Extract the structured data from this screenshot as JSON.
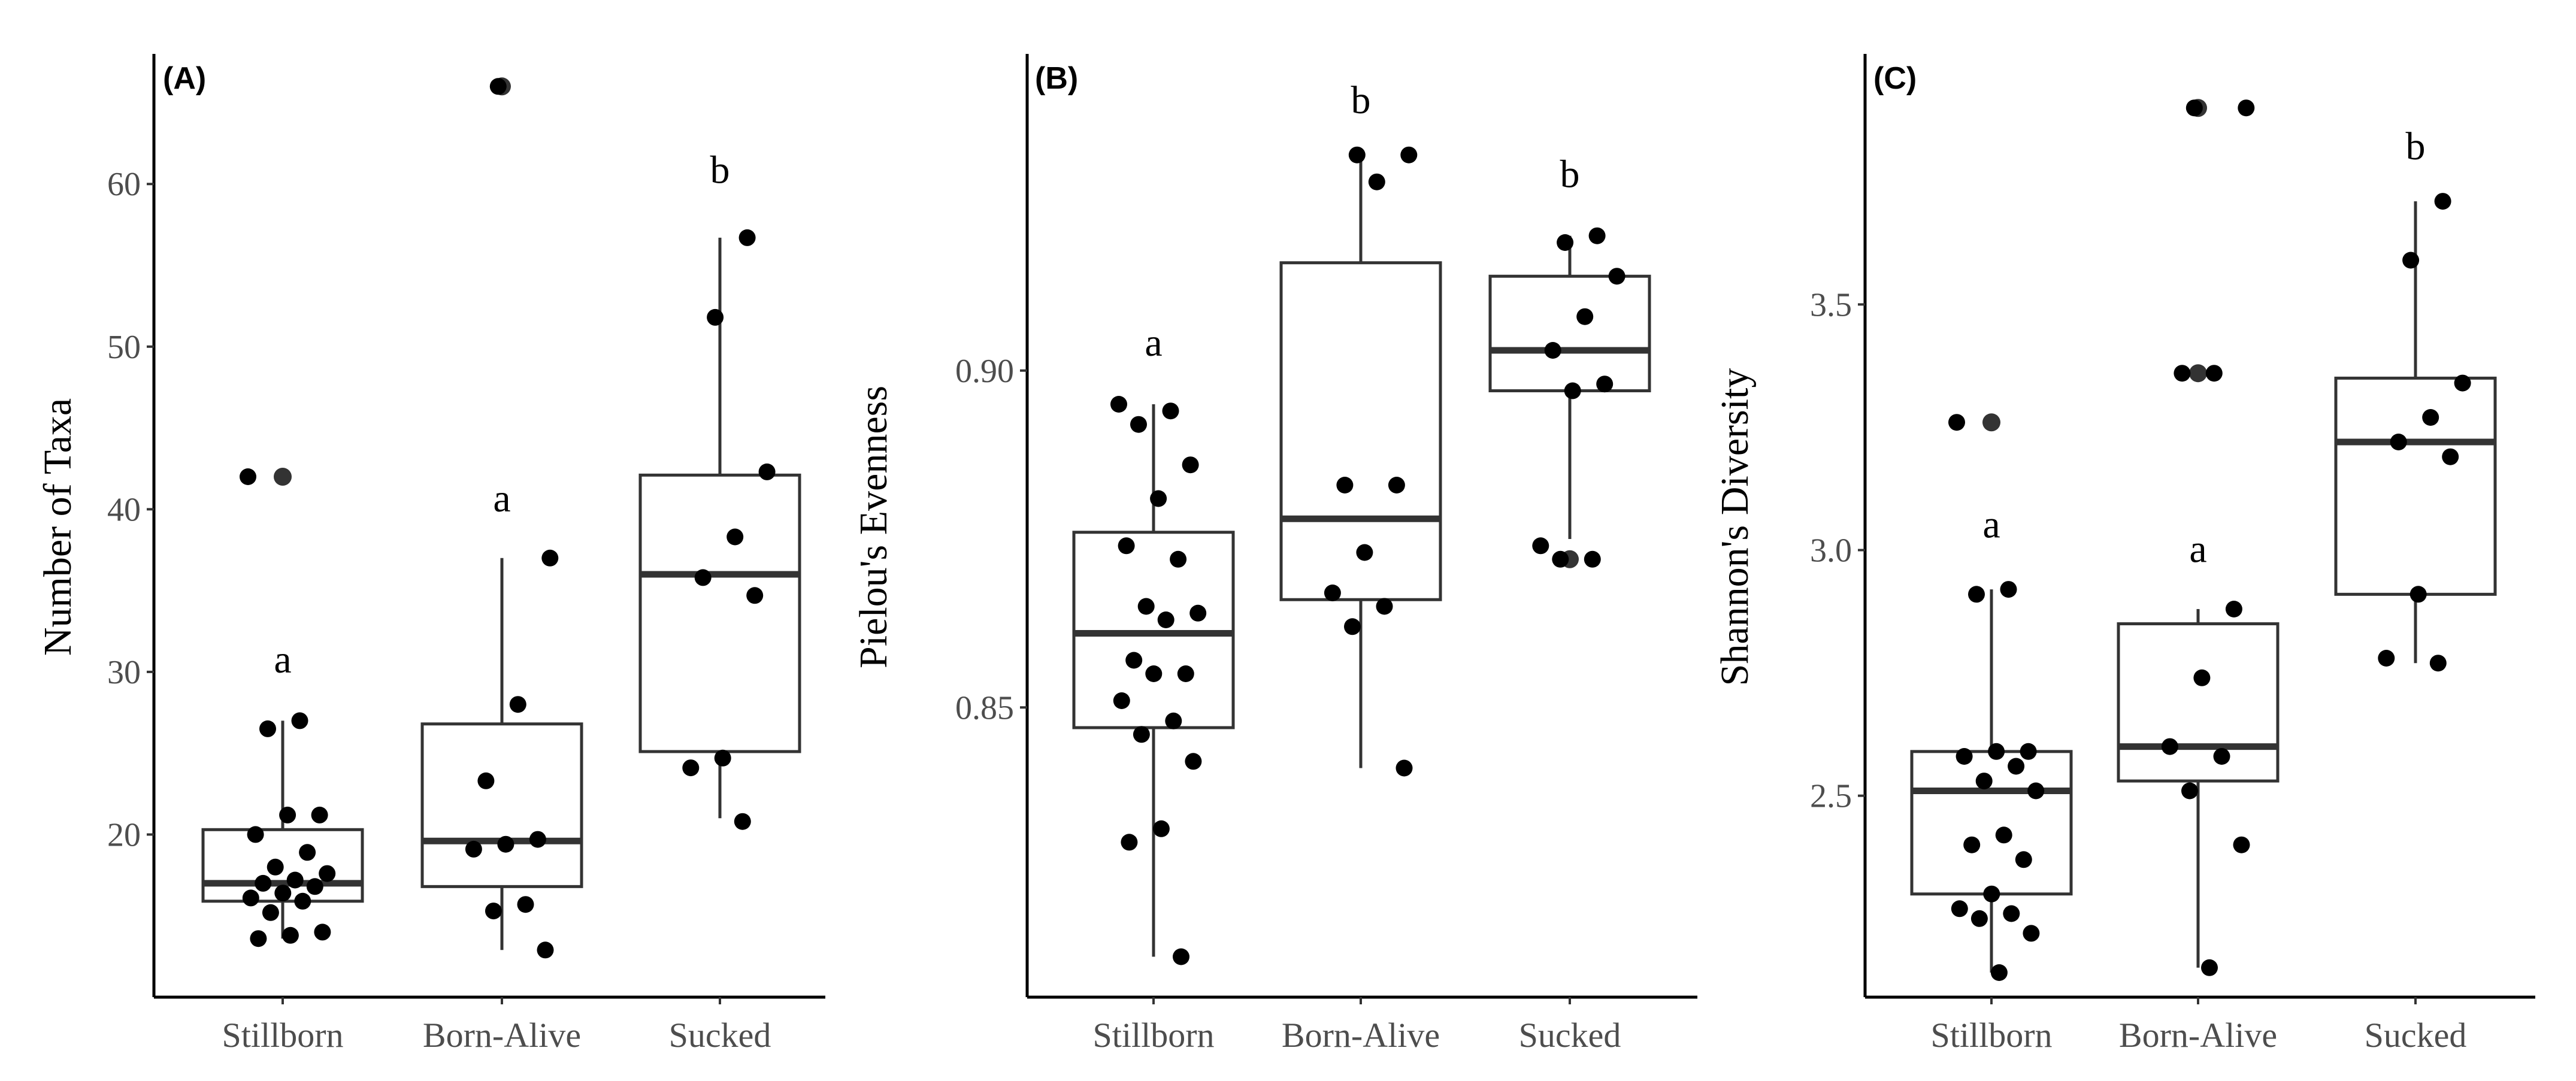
{
  "chart_data": [
    {
      "type": "box",
      "panel_label": "(A)",
      "ylabel": "Number of Taxa",
      "categories": [
        "Stillborn",
        "Born-Alive",
        "Sucked"
      ],
      "ylim": [
        10,
        68
      ],
      "yticks": [
        20,
        30,
        40,
        50,
        60
      ],
      "grid": false,
      "boxes": [
        {
          "category": "Stillborn",
          "q1": 15.9,
          "median": 17.0,
          "q3": 20.3,
          "whisker_low": 13.6,
          "whisker_high": 27.0,
          "outliers": [
            42
          ]
        },
        {
          "category": "Born-Alive",
          "q1": 16.8,
          "median": 19.6,
          "q3": 26.8,
          "whisker_low": 12.9,
          "whisker_high": 37.0,
          "outliers": [
            66
          ]
        },
        {
          "category": "Sucked",
          "q1": 25.1,
          "median": 36.0,
          "q3": 42.1,
          "whisker_low": 21.0,
          "whisker_high": 56.7,
          "outliers": []
        }
      ],
      "points": [
        {
          "category": "Stillborn",
          "values": [
            42,
            27.0,
            26.5,
            21.2,
            21.2,
            20.0,
            18.9,
            18.0,
            17.6,
            17.2,
            17.0,
            16.8,
            16.4,
            16.1,
            15.9,
            15.2,
            14.0,
            13.8,
            13.6
          ]
        },
        {
          "category": "Born-Alive",
          "values": [
            66,
            37.0,
            28.0,
            23.3,
            19.7,
            19.4,
            19.1,
            15.7,
            15.3,
            12.9
          ]
        },
        {
          "category": "Sucked",
          "values": [
            56.7,
            51.8,
            42.3,
            38.3,
            35.8,
            34.7,
            24.7,
            24.1,
            20.8
          ]
        }
      ],
      "significance_letters": [
        {
          "category": "Stillborn",
          "letter": "a",
          "y": 30.7
        },
        {
          "category": "Born-Alive",
          "letter": "a",
          "y": 40.6
        },
        {
          "category": "Sucked",
          "letter": "b",
          "y": 60.8
        }
      ]
    },
    {
      "type": "box",
      "panel_label": "(B)",
      "ylabel": "Pielou's Evenness",
      "categories": [
        "Stillborn",
        "Born-Alive",
        "Sucked"
      ],
      "ylim": [
        0.807,
        0.947
      ],
      "yticks": [
        0.85,
        0.9
      ],
      "ytick_labels": [
        "0.85",
        "0.90"
      ],
      "grid": false,
      "boxes": [
        {
          "category": "Stillborn",
          "q1": 0.847,
          "median": 0.861,
          "q3": 0.876,
          "whisker_low": 0.813,
          "whisker_high": 0.895,
          "outliers": []
        },
        {
          "category": "Born-Alive",
          "q1": 0.866,
          "median": 0.878,
          "q3": 0.916,
          "whisker_low": 0.841,
          "whisker_high": 0.932,
          "outliers": []
        },
        {
          "category": "Sucked",
          "q1": 0.897,
          "median": 0.903,
          "q3": 0.914,
          "whisker_low": 0.875,
          "whisker_high": 0.92,
          "outliers": [
            0.872
          ]
        }
      ],
      "points": [
        {
          "category": "Stillborn",
          "values": [
            0.895,
            0.894,
            0.892,
            0.886,
            0.881,
            0.874,
            0.872,
            0.865,
            0.864,
            0.863,
            0.857,
            0.855,
            0.855,
            0.851,
            0.848,
            0.846,
            0.842,
            0.832,
            0.83,
            0.813
          ]
        },
        {
          "category": "Born-Alive",
          "values": [
            0.932,
            0.932,
            0.928,
            0.883,
            0.883,
            0.873,
            0.867,
            0.865,
            0.862,
            0.841
          ]
        },
        {
          "category": "Sucked",
          "values": [
            0.92,
            0.919,
            0.914,
            0.908,
            0.903,
            0.898,
            0.897,
            0.874,
            0.872,
            0.872
          ]
        }
      ],
      "significance_letters": [
        {
          "category": "Stillborn",
          "letter": "a",
          "y": 0.904
        },
        {
          "category": "Born-Alive",
          "letter": "b",
          "y": 0.94
        },
        {
          "category": "Sucked",
          "letter": "b",
          "y": 0.929
        }
      ]
    },
    {
      "type": "box",
      "panel_label": "(C)",
      "ylabel": "Shannon's Diversity",
      "categories": [
        "Stillborn",
        "Born-Alive",
        "Sucked"
      ],
      "ylim": [
        2.09,
        4.01
      ],
      "yticks": [
        2.5,
        3.0,
        3.5
      ],
      "ytick_labels": [
        "2.5",
        "3.0",
        "3.5"
      ],
      "grid": false,
      "boxes": [
        {
          "category": "Stillborn",
          "q1": 2.3,
          "median": 2.51,
          "q3": 2.59,
          "whisker_low": 2.14,
          "whisker_high": 2.92,
          "outliers": [
            3.26
          ]
        },
        {
          "category": "Born-Alive",
          "q1": 2.53,
          "median": 2.6,
          "q3": 2.85,
          "whisker_low": 2.15,
          "whisker_high": 2.88,
          "outliers": [
            3.36,
            3.9
          ]
        },
        {
          "category": "Sucked",
          "q1": 2.91,
          "median": 3.22,
          "q3": 3.35,
          "whisker_low": 2.77,
          "whisker_high": 3.71,
          "outliers": []
        }
      ],
      "points": [
        {
          "category": "Stillborn",
          "values": [
            3.26,
            2.92,
            2.91,
            2.59,
            2.59,
            2.58,
            2.56,
            2.53,
            2.51,
            2.42,
            2.4,
            2.37,
            2.3,
            2.27,
            2.26,
            2.25,
            2.22,
            2.14
          ]
        },
        {
          "category": "Born-Alive",
          "values": [
            3.9,
            3.9,
            3.36,
            3.36,
            2.88,
            2.74,
            2.6,
            2.58,
            2.51,
            2.4,
            2.15
          ]
        },
        {
          "category": "Sucked",
          "values": [
            3.71,
            3.59,
            3.34,
            3.27,
            3.22,
            3.19,
            2.91,
            2.78,
            2.77
          ]
        }
      ],
      "significance_letters": [
        {
          "category": "Stillborn",
          "letter": "a",
          "y": 3.05
        },
        {
          "category": "Born-Alive",
          "letter": "a",
          "y": 3.0
        },
        {
          "category": "Sucked",
          "letter": "b",
          "y": 3.82
        }
      ]
    }
  ],
  "colors": {
    "point": "#000000",
    "outlier": "#333333",
    "box_stroke": "#333333",
    "median": "#333333",
    "axis": "#000000",
    "tick_text": "#4d4d4d"
  }
}
